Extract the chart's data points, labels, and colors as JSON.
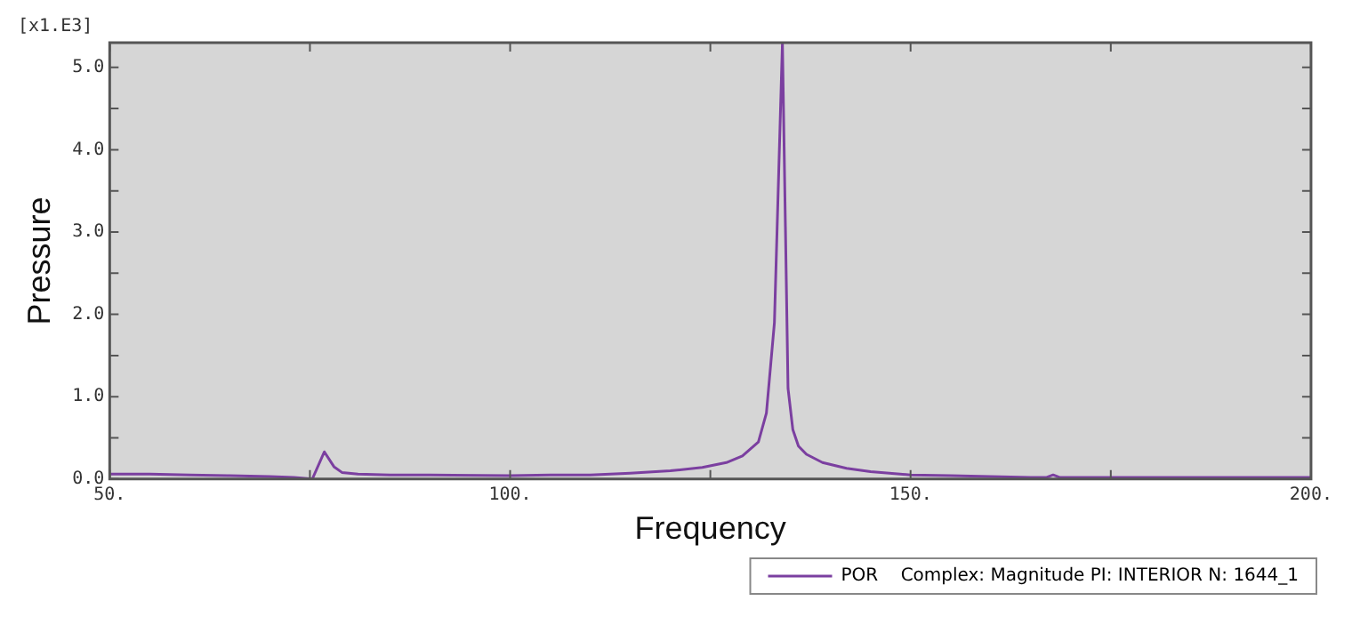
{
  "chart_data": {
    "type": "line",
    "xlabel": "Frequency",
    "ylabel": "Pressure",
    "annotations": [
      "[x1.E3]"
    ],
    "x": [
      50,
      55,
      60,
      65,
      70,
      73,
      75.3,
      76.8,
      78,
      79,
      81,
      85,
      90,
      100,
      105,
      110,
      115,
      120,
      124,
      127,
      129,
      131,
      132,
      133,
      134,
      134.7,
      135.3,
      136,
      137,
      139,
      142,
      145,
      150,
      155,
      160,
      165,
      167,
      167.8,
      168.6,
      175,
      185,
      200
    ],
    "series": [
      {
        "name": "POR    Complex: Magnitude PI: INTERIOR N: 1644_1",
        "color": "#7b3fa0",
        "values": [
          0.06,
          0.06,
          0.05,
          0.04,
          0.03,
          0.02,
          0.0,
          0.33,
          0.15,
          0.08,
          0.06,
          0.05,
          0.05,
          0.04,
          0.05,
          0.05,
          0.07,
          0.1,
          0.14,
          0.2,
          0.28,
          0.45,
          0.8,
          1.9,
          5.3,
          1.1,
          0.6,
          0.4,
          0.3,
          0.2,
          0.13,
          0.09,
          0.05,
          0.04,
          0.03,
          0.02,
          0.02,
          0.05,
          0.02,
          0.02,
          0.02,
          0.02
        ]
      }
    ],
    "xlim": [
      50,
      200
    ],
    "ylim": [
      0,
      5.3
    ],
    "xticks": [
      {
        "value": 50,
        "label": "50."
      },
      {
        "value": 75,
        "label": null
      },
      {
        "value": 100,
        "label": "100."
      },
      {
        "value": 125,
        "label": null
      },
      {
        "value": 150,
        "label": "150."
      },
      {
        "value": 175,
        "label": null
      },
      {
        "value": 200,
        "label": "200."
      }
    ],
    "yticks": [
      {
        "value": 0,
        "label": "0.0"
      },
      {
        "value": 0.5,
        "label": null
      },
      {
        "value": 1,
        "label": "1.0"
      },
      {
        "value": 1.5,
        "label": null
      },
      {
        "value": 2,
        "label": "2.0"
      },
      {
        "value": 2.5,
        "label": null
      },
      {
        "value": 3,
        "label": "3.0"
      },
      {
        "value": 3.5,
        "label": null
      },
      {
        "value": 4,
        "label": "4.0"
      },
      {
        "value": 4.5,
        "label": null
      },
      {
        "value": 5,
        "label": "5.0"
      }
    ],
    "grid": false,
    "legend": "bottom right",
    "marker": "none",
    "line_style": "solid"
  }
}
